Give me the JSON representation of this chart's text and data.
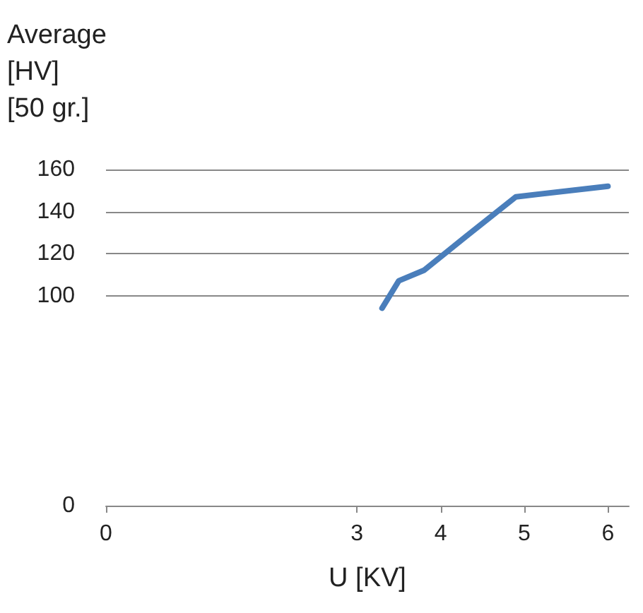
{
  "chart_data": {
    "type": "line",
    "ylabel": "Average\n[HV]\n[50 gr.]",
    "xlabel": "U [KV]",
    "x": [
      3.3,
      3.5,
      3.8,
      4.3,
      4.9,
      6.0
    ],
    "series": [
      {
        "color": "#4a7ebb",
        "values": [
          94,
          107,
          112,
          128,
          147,
          152
        ]
      }
    ],
    "xlim": [
      0,
      6.25
    ],
    "xticks": [
      0,
      3,
      4,
      5,
      6
    ],
    "ylim": [
      0,
      160
    ],
    "yticks": [
      0,
      100,
      120,
      140,
      160
    ],
    "grid": "y",
    "marker": "none",
    "line_style": "solid"
  }
}
